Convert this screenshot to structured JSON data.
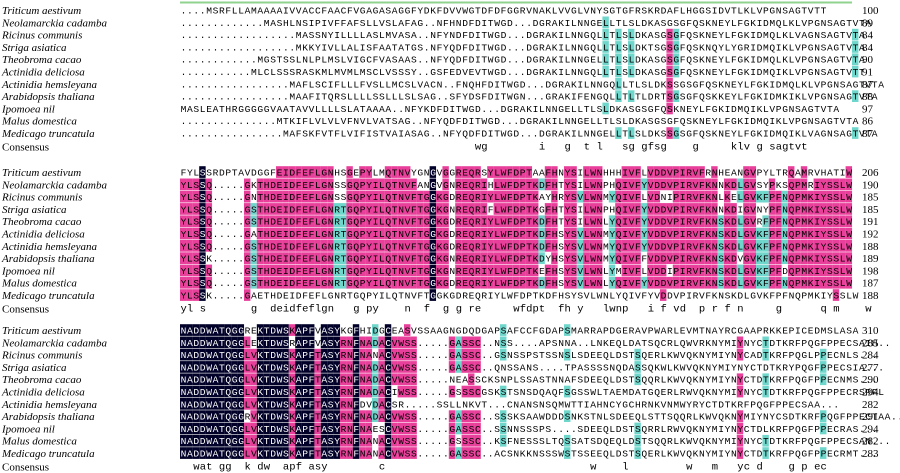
{
  "blocks": [
    {
      "rows": [
        {
          "name": "Triticum aestivum",
          "sequence": "....MSRFLLAMAAAAIVVACCFAACFVGAGASAGGFYDKFDVVWGTDFDFGGRVNAKLVVGLVNYSGTGFRSKRDAFLHGGSIDVTLKLVPGNSAGTVTT",
          "end": 100
        },
        {
          "name": "Neolamarckia cadamba",
          "sequence": ".............MASHLNSIPIVFFAFSLLVSLAFAG..NFHNDFDITWGD...DGRAKILNNGELLTLSLDKASGSGFQSKNEYLFGKIDMQLKLVPGNSAGTVTA",
          "end": 89
        },
        {
          "name": "Ricinus communis",
          "sequence": "..................MASSNYILLLLASLMVASA..NFYNDFDITWGD...DGRAKILNNGQLLTLSLDKASGSGFQSKNEYLFGKIDMQLKLVAGNSAGTVTA",
          "end": 84
        },
        {
          "name": "Striga asiatica",
          "sequence": "..................MKKYIVLLALISFAATATGS.NFYQDFDITWGD...DGRAKILNNGQLLTLSLDKTSGSGFQSKNQYLYGRIDMQIKLVPGNSAGTVTA",
          "end": 84
        },
        {
          "name": "Theobroma cacao",
          "sequence": "............MGSTSSLNLPLMSLVIGCFVASAAS..NFYQDFDITWGD...DGRAKILNNGELLTLSLDKASGSGFQSKNEYLFGKIDMQLKLVPGNSAGTVTA",
          "end": 90
        },
        {
          "name": "Actinidia deliciosa",
          "sequence": "...........MLCLSSSRASKMLMVMLMSCLVSSSY..GSFEDVEVTWGD...DGRAKILNNGQLLTLSLDKASGSGFQSKNEYLFGKIDMQIKLVPGNSAGTVTT",
          "end": 91
        },
        {
          "name": "Actinidia hemsleyana",
          "sequence": ".................MAFLSCIFLLLFVSLLMCSLVACN..FNQHFDITWGD...DGRAKILNNGQLLTLSLDKSSGSGFQSKNEYLFGKIDMQLKLVPGNSAGTVTA",
          "end": 87
        },
        {
          "name": "Arabidopsis thaliana",
          "sequence": ".................MAAFITQRSLLLLSSLLLSLSAG..SFYDSFDITWGN...GRAKIFENGQLLTLTLDRTSGSGFQSKKEYLFGKIDMKIKLVPGNSAGTVTA",
          "end": 88
        },
        {
          "name": "Ipomoea nil",
          "sequence": "MASLEATHRGGGGGVAATAVVLLLLSLATAAAA..NFYKDFDITWGD...DGRAKILNNGELLTLSLDKASGSGFQSKNEYLFGKIDMQIKLVPGNSAGTVTA",
          "end": 97
        },
        {
          "name": "Malus domestica",
          "sequence": "...............MTKIFLVLVLVFNVLVATSAG..NFYQDFDITWGD...DGRAKILNNGELLTLSLDKASGSGFQSKNEYLFGKIDMQIKLVPGNSAGTVTA",
          "end": 86
        },
        {
          "name": "Medicago truncatula",
          "sequence": "................MAFSKFVTFLVIFISTVAIASAG..NFYQDFDITWGD...DGRAKILNNGELLTLSLDKSSGSGFQSKNEYLFGKIDMQIKLVAGNSAGTVTA",
          "end": 87
        }
      ],
      "consensus_label": "Consensus",
      "consensus": "                                              wg        i   g  t l   sg gfsg    g     klv g sagtvt"
    },
    {
      "rows": [
        {
          "name": "Triticum aestivum",
          "sequence": "FYLSSRDPTAVDGGFEIDFEFLGNHSGEPYLMQTNVYGNGVGGREQRSYLWFDPTAAFHNYSILWNHHHIVFLVDDVPIRVFRNHEANGVPYLTRQAMRVHATIW",
          "end": 206
        },
        {
          "name": "Neolamarckia cadamba",
          "sequence": "YLSSQ.....GKTHDEIDFEFLGNSSGQPYILQTNVFANGVGNREQRIHLWFDPTKDFHTYSILWNPHQIVFYVDDVPIRVFKNNKDLGVSYPKSQPMRIYSSLW",
          "end": 190
        },
        {
          "name": "Ricinus communis",
          "sequence": "YLSSQ.....GNTHDEIDFEFLGNSSGQPYILQTNVFTGGKGDREQRIYLWFDPTKAYHRYSVLWNMYQIVFLVDNIPIRVFKNLKELGVKFPFNQPMKIYSSLW",
          "end": 185
        },
        {
          "name": "Striga asiatica",
          "sequence": "YLSSQ.....GSTHDEIDFEFLGNRTGQPYILQTNVFTGGKGNREQRIFLWFDPTKGFHTYSILWNPHQIVFYVDDVPIRVFKNNKDIGVNYPFNQPMKIYSSLW",
          "end": 185
        },
        {
          "name": "Theobroma cacao",
          "sequence": "YLSSQ.....GSTHDEIDFEFLGNRTGQPYILQTNVFTGGKGDREQRIYLWFDPTKDFHTYSILWNLYQIVFYVDDVPIRVFKNSKDLGVRFPFNQPMKIYSSLW",
          "end": 191
        },
        {
          "name": "Actinidia deliciosa",
          "sequence": "YLSSQ.....GATHDEIDFEFLGNRTGQPYILQTNVFTGGKGDREQRIYLWFDPTKDFHSYSVLWNMYQIVFYVDDVPIRVFKNSKDLGVKFPFNQPMKIYSSLW",
          "end": 192
        },
        {
          "name": "Actinidia hemsleyana",
          "sequence": "YLSSQ.....GSTHDEIDFEFLGNRTGQPYILQTNVFTGGKGDREQRIYLWFDPTKDFHSYSVLWNMYQIVFYVDDVPIRVFKNSKDLGVKFPFNQPMKIYSSLW",
          "end": 188
        },
        {
          "name": "Arabidopsis thaliana",
          "sequence": "YLSSK.....GSTHDEIDFEFLGNRTGQPYILQTNVFTGGKGNREQRIYLWFDPTKDYHSYSVLWNMYQIVFFVDDVPIRVFKNSKDVGVKFPFNQPMKIYSSLW",
          "end": 189
        },
        {
          "name": "Ipomoea nil",
          "sequence": "YLSSQ.....GSTHDEIDFEFLGNRTGQPYILQTNVFTGGKGNREQRIYLWFDPTKEFHSYSVLWNLYMIVFLVDDIPIRVFKNSKDLGVKFPFDQPMKIYSSLW",
          "end": 198
        },
        {
          "name": "Malus domestica",
          "sequence": "YLSSQ.....GSTHDEIDFEFLGNRTGQPYILQTNVFTGGKGDREQRIYLWFDPTKDFHSYSVLWNLYQIVFYVDDVPIRVFKNSKDLGVKFPFNQPMKIYSSLW",
          "end": 187
        },
        {
          "name": "Medicago truncatula",
          "sequence": "YLSSK.....GAETHDEIDFEFLGNRTGQPYILQTNVFTGGKGDREQRIYLWFDPTKDFHSYSVLWNLYQIVFYVDDVPIRVFKNSKDLGVKFPFNQPMKIYSSLW",
          "end": 188
        }
      ],
      "consensus_label": "Consensus",
      "consensus": "yl s       g  deidfeflgn   g py    n  f  g g re     wfdpt  fh y   lwnp   i f vd  p r f n     g      q m    w"
    },
    {
      "rows": [
        {
          "name": "Triticum aestivum",
          "sequence": "NADDWATQGGREKTDWSKAPFVASYKGFHIDGCEASVSSAAGNGDQDGAPSAFCCFGDAPSMARRAPDGERAVPWARLEVMTNAYRCGAAPRKKEPICEDMSLASA",
          "end": 310
        },
        {
          "name": "Neolamarckia cadamba",
          "sequence": "NADDWATQGGLEKTDWSRAPFVASYRNFNADACVWSS.....GASSC..NSS....APSNNA..LNKEQLDATSQCRLQWVRKNYMIYNYCTDTKRFPQGFPPECSAIH..",
          "end": 285
        },
        {
          "name": "Ricinus communis",
          "sequence": "NADDWATQGGLVKTDWSKAPFTASYRNFNANACVWSS.....GASSC..GSNSSPSTSSNSLSDEEQLDSTSQERLKWVQKNYMIYNYCADTKRFPQGLPPECNLS...",
          "end": 284
        },
        {
          "name": "Striga asiatica",
          "sequence": "NADDWATQGGLVKTDWSKAPFTASYRNFNADACVWSS.....GASSC..QNSSANS....TPASSSSNQDASSQKWLKWVQKNYMIYNYCTDTKRYPQGFPPECSIA...",
          "end": 277
        },
        {
          "name": "Theobroma cacao",
          "sequence": "NADDWATQGGLVKTDWSKAPFTASYRNFNADACVWSS.....NEASSCKSNPLSSASTNNAFSDEEQLDSTSQQRLKWVQKNYMIYNYCTDTKRFPQGFPPECNMS...",
          "end": 290
        },
        {
          "name": "Actinidia deliciosa",
          "sequence": "NADDWATQGGLVKTDWSKAPFTASYRNFNADACIWSS.....GSSSCGSKSTSNSDQAQFSGSSWLTAEMDATGQERLRWVQKNYMIYNYCTDTKRFPQGFPPECRSRFL",
          "end": 294
        },
        {
          "name": "Actinidia hemsleyana",
          "sequence": "NADDWATQGGLVKTDWSKAPFTASYRNFDVDACSR.....SSLLNKVT...CNANSNSQMWTTIAHNCYGCHRNKVNMWYRYCTDTKRFPQGFPPECSAA...",
          "end": 282
        },
        {
          "name": "Arabidopsis thaliana",
          "sequence": "NADDWATQGGRVKTDWSKAPFTASYRNFNADACVWSS.....GASSC..SSSKSAAWDDDSNKSTNLSDEEQLSTTSQQRLKWVQKNYMIYNYCSDTKRFPQGFPPECTAA..",
          "end": 291
        },
        {
          "name": "Ipomoea nil",
          "sequence": "NADDWATQGGLVKTDWSKAPFTASYRNFNAESCVWSS.....GASSC..SSNNSSSPS....SDEEQLDSTSQRRLRWVQKNYMIYNYCTDLKRFPQGFPPECRAS...",
          "end": 294
        },
        {
          "name": "Malus domestica",
          "sequence": "NADDWATQGGLVKTDWSKAPFTASYRNFNANACVWSS.....GSSSC..KSFNESSSLTQSSATSDQEQLDSTSQQRLKWVQKNYMIYNYCTDTKRFPQGFPPECSAN...",
          "end": 282
        },
        {
          "name": "Medicago truncatula",
          "sequence": "NADDWATQGGLVKTDWSKAPFTASYRNFNANACVWSS.....GASSC..ACSNKKNSSSWSTSSEEQLDSTSQERLKWVQKNYMIYNYCTDTKRFPQGFPPECRMT...",
          "end": 283
        }
      ],
      "consensus_label": "Consensus",
      "consensus": "  wat gg  k dw  apf asy        c                                w    l         w   m   yc d    g p ec"
    }
  ]
}
